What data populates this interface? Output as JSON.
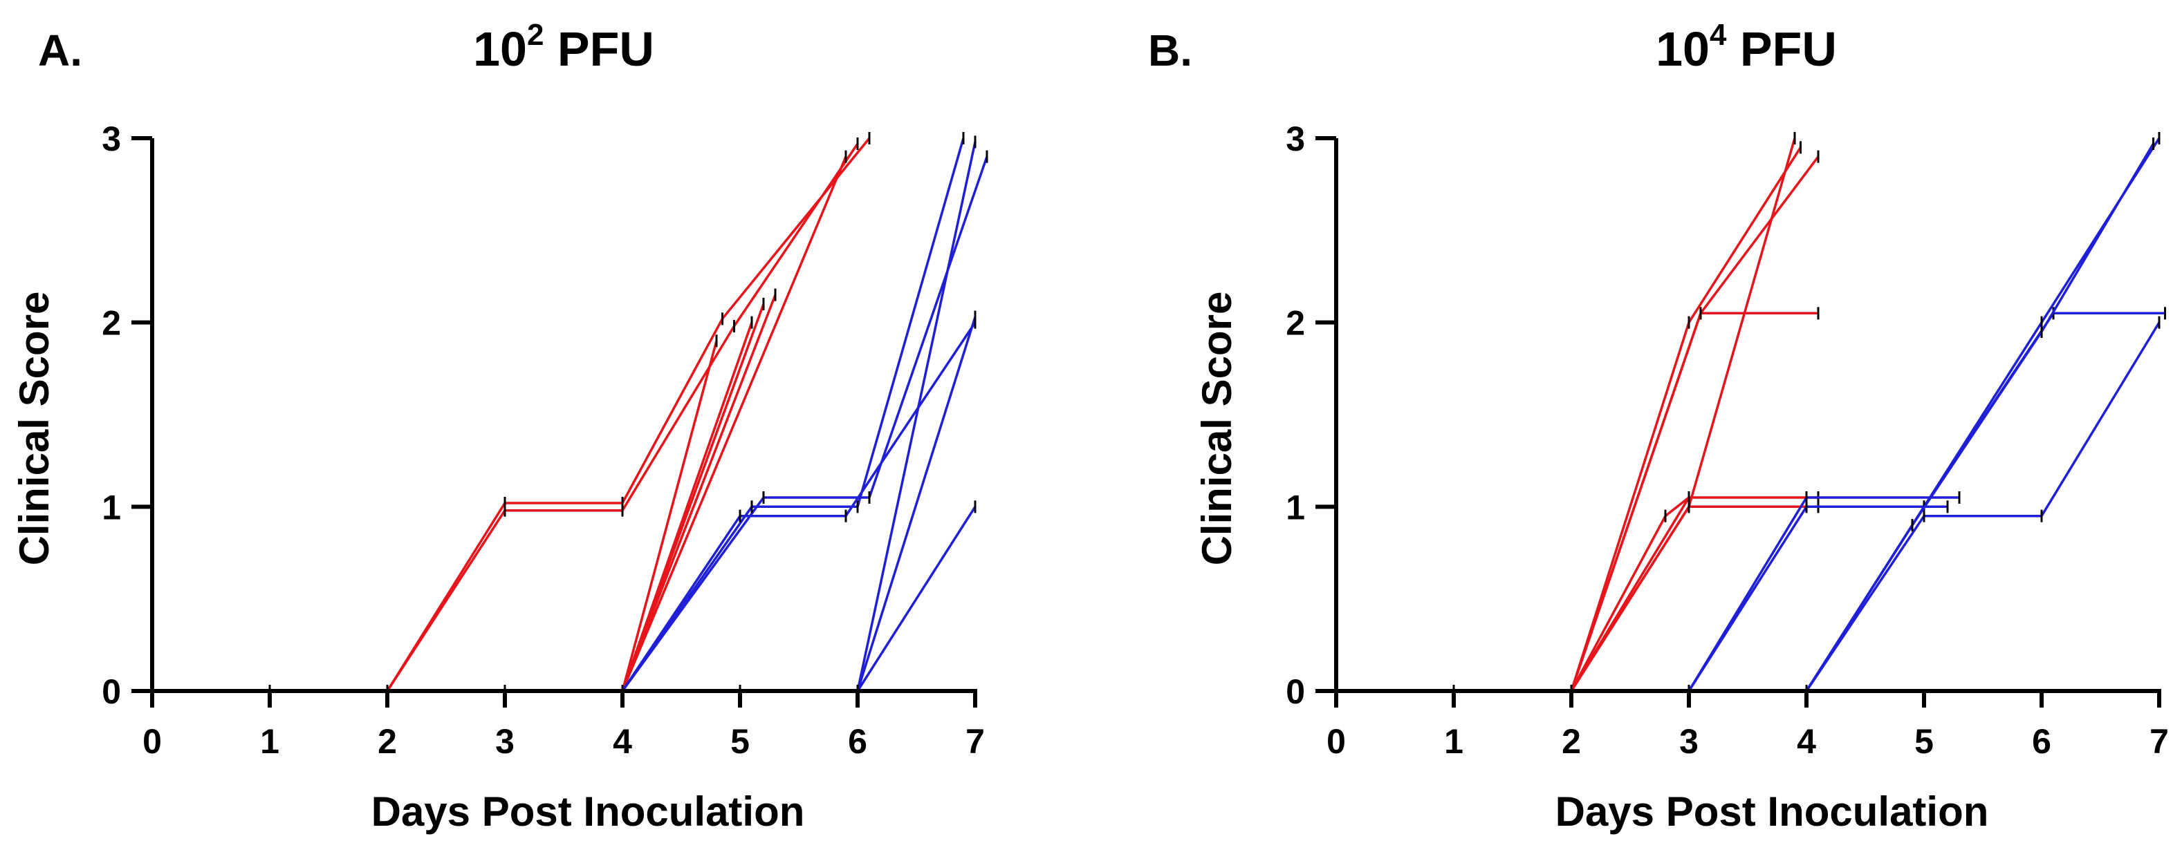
{
  "figure": {
    "panels": [
      "A.",
      "B."
    ]
  },
  "chart_data": [
    {
      "type": "line",
      "panel_label": "A.",
      "title_base": "10",
      "title_exp": "2",
      "title_suffix": " PFU",
      "xlabel": "Days Post Inoculation",
      "ylabel": "Clinical Score",
      "xlim": [
        0,
        7
      ],
      "ylim": [
        0,
        3
      ],
      "xticks": [
        "0",
        "1",
        "2",
        "3",
        "4",
        "5",
        "6",
        "7"
      ],
      "yticks": [
        "0",
        "1",
        "2",
        "3"
      ],
      "colors": {
        "red": "#e8141b",
        "blue": "#1f1fd8"
      },
      "series": [
        {
          "name": "red-1",
          "color": "red",
          "x": [
            1,
            2,
            3,
            4,
            4.85,
            6.1
          ],
          "y": [
            0,
            0,
            1.02,
            1.02,
            2.02,
            3.0
          ]
        },
        {
          "name": "red-2",
          "color": "red",
          "x": [
            1,
            2,
            3,
            4,
            4.95,
            6.0
          ],
          "y": [
            0,
            0,
            0.98,
            0.98,
            1.98,
            2.97
          ]
        },
        {
          "name": "red-3",
          "color": "red",
          "x": [
            1,
            2,
            3,
            4,
            5.3
          ],
          "y": [
            0,
            0,
            0,
            0,
            2.15
          ]
        },
        {
          "name": "red-4",
          "color": "red",
          "x": [
            1,
            2,
            3,
            4,
            5.2
          ],
          "y": [
            0,
            0,
            0,
            0,
            2.1
          ]
        },
        {
          "name": "red-5",
          "color": "red",
          "x": [
            1,
            2,
            3,
            4,
            5.1
          ],
          "y": [
            0,
            0,
            0,
            0,
            2.0
          ]
        },
        {
          "name": "red-6",
          "color": "red",
          "x": [
            1,
            2,
            3,
            4,
            4.8
          ],
          "y": [
            0,
            0,
            0,
            0,
            1.9
          ]
        },
        {
          "name": "red-7",
          "color": "red",
          "x": [
            1,
            2,
            3,
            4,
            5.9
          ],
          "y": [
            0,
            0,
            0,
            0,
            2.9
          ]
        },
        {
          "name": "blue-1",
          "color": "blue",
          "x": [
            4,
            5.2,
            6.1,
            7.1
          ],
          "y": [
            0,
            1.05,
            1.05,
            2.9
          ]
        },
        {
          "name": "blue-2",
          "color": "blue",
          "x": [
            4,
            5.1,
            6.0,
            6.9
          ],
          "y": [
            0,
            1.0,
            1.0,
            3.0
          ]
        },
        {
          "name": "blue-3",
          "color": "blue",
          "x": [
            4,
            5.0,
            5.9,
            7.0
          ],
          "y": [
            0,
            0.95,
            0.95,
            2.0
          ]
        },
        {
          "name": "blue-4",
          "color": "blue",
          "x": [
            4,
            5,
            6,
            7.0
          ],
          "y": [
            0,
            0,
            0,
            2.98
          ]
        },
        {
          "name": "blue-5",
          "color": "blue",
          "x": [
            4,
            5,
            6,
            7.0
          ],
          "y": [
            0,
            0,
            0,
            2.03
          ]
        },
        {
          "name": "blue-6",
          "color": "blue",
          "x": [
            4,
            5,
            6,
            7.0
          ],
          "y": [
            0,
            0,
            0,
            1.0
          ]
        }
      ]
    },
    {
      "type": "line",
      "panel_label": "B.",
      "title_base": "10",
      "title_exp": "4",
      "title_suffix": " PFU",
      "xlabel": "Days Post Inoculation",
      "ylabel": "Clinical Score",
      "xlim": [
        0,
        7
      ],
      "ylim": [
        0,
        3
      ],
      "xticks": [
        "0",
        "1",
        "2",
        "3",
        "4",
        "5",
        "6",
        "7"
      ],
      "yticks": [
        "0",
        "1",
        "2",
        "3"
      ],
      "colors": {
        "red": "#e8141b",
        "blue": "#1f1fd8"
      },
      "series": [
        {
          "name": "red-1",
          "color": "red",
          "x": [
            1,
            2,
            3.1,
            4.1
          ],
          "y": [
            0,
            0,
            2.05,
            2.05
          ]
        },
        {
          "name": "red-2",
          "color": "red",
          "x": [
            1,
            2,
            3.1,
            4.1
          ],
          "y": [
            0,
            0,
            2.05,
            2.9
          ]
        },
        {
          "name": "red-3",
          "color": "red",
          "x": [
            1,
            2,
            3.0,
            4.1
          ],
          "y": [
            0,
            0,
            1.0,
            1.0
          ]
        },
        {
          "name": "red-4",
          "color": "red",
          "x": [
            1,
            2,
            3.0,
            4.1
          ],
          "y": [
            0,
            0,
            1.05,
            1.05
          ]
        },
        {
          "name": "red-5",
          "color": "red",
          "x": [
            1,
            2,
            3.0,
            3.9
          ],
          "y": [
            0,
            0,
            1.0,
            3.0
          ]
        },
        {
          "name": "red-6",
          "color": "red",
          "x": [
            1,
            2,
            3.0,
            3.95
          ],
          "y": [
            0,
            0,
            2.0,
            2.95
          ]
        },
        {
          "name": "red-7",
          "color": "red",
          "x": [
            1,
            2,
            2.8,
            3.0
          ],
          "y": [
            0,
            0,
            0.95,
            1.05
          ]
        },
        {
          "name": "blue-1",
          "color": "blue",
          "x": [
            2,
            3.0,
            4.0,
            5.3
          ],
          "y": [
            0,
            0,
            1.05,
            1.05
          ]
        },
        {
          "name": "blue-2",
          "color": "blue",
          "x": [
            2,
            3.0,
            4.0,
            5.2
          ],
          "y": [
            0,
            0,
            1.0,
            1.0
          ]
        },
        {
          "name": "blue-3",
          "color": "blue",
          "x": [
            4,
            5.0,
            6.0,
            7.0
          ],
          "y": [
            0,
            0.95,
            0.95,
            2.0
          ]
        },
        {
          "name": "blue-4",
          "color": "blue",
          "x": [
            4,
            5.0,
            6.1,
            7.05
          ],
          "y": [
            0,
            1.0,
            2.05,
            2.05
          ]
        },
        {
          "name": "blue-5",
          "color": "blue",
          "x": [
            4,
            5.0,
            6.0,
            7.0
          ],
          "y": [
            0,
            1.0,
            2.0,
            3.0
          ]
        },
        {
          "name": "blue-6",
          "color": "blue",
          "x": [
            4,
            4.9,
            6.0,
            6.95
          ],
          "y": [
            0,
            0.9,
            1.95,
            2.97
          ]
        }
      ]
    }
  ]
}
